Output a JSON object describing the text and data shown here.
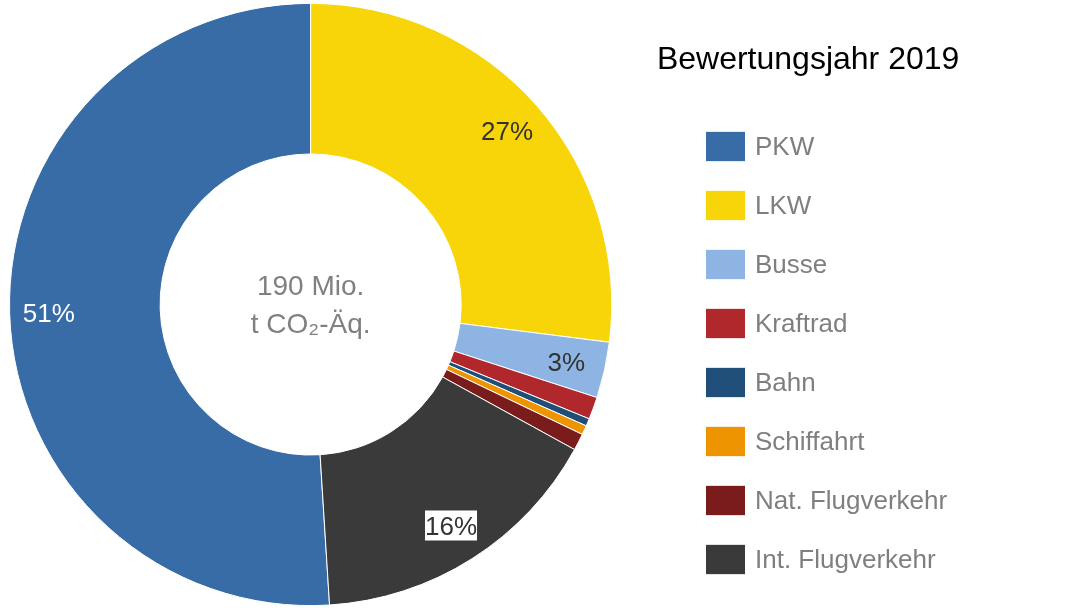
{
  "chart_data": {
    "type": "donut",
    "title": "Bewertungsjahr 2019",
    "categories": [
      "PKW",
      "LKW",
      "Busse",
      "Kraftrad",
      "Bahn",
      "Schiffahrt",
      "Nat. Flugverkehr",
      "Int. Flugverkehr"
    ],
    "values": [
      51,
      27,
      3,
      1.2,
      0.4,
      0.5,
      0.9,
      16
    ],
    "colors": [
      "#376ca6",
      "#f7d509",
      "#8db4e2",
      "#b0282c",
      "#1f4e79",
      "#ee9400",
      "#7a1c1c",
      "#3a3a3a"
    ],
    "value_labels": [
      "51%",
      "27%",
      "3%",
      null,
      null,
      null,
      null,
      "16%"
    ],
    "annotations": [
      "190 Mio.\nt CO₂-Äq."
    ],
    "legend": "right"
  }
}
